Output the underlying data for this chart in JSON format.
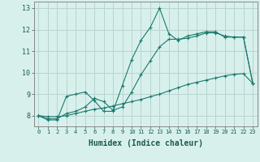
{
  "xlabel": "Humidex (Indice chaleur)",
  "ylabel": "",
  "background_color": "#d8f0ec",
  "grid_color": "#b8d4d0",
  "line_color": "#1a7a6e",
  "xlim": [
    -0.5,
    23.5
  ],
  "ylim": [
    7.5,
    13.3
  ],
  "xtick_labels": [
    "0",
    "1",
    "2",
    "3",
    "4",
    "5",
    "6",
    "7",
    "8",
    "9",
    "10",
    "11",
    "12",
    "13",
    "14",
    "15",
    "16",
    "17",
    "18",
    "19",
    "20",
    "21",
    "22",
    "23"
  ],
  "ytick_values": [
    8,
    9,
    10,
    11,
    12,
    13
  ],
  "series": [
    {
      "x": [
        0,
        1,
        2,
        3,
        4,
        5,
        6,
        7,
        8,
        9,
        10,
        11,
        12,
        13,
        14,
        15,
        16,
        17,
        18,
        19,
        20,
        21,
        22,
        23
      ],
      "y": [
        8.0,
        7.8,
        7.8,
        8.9,
        9.0,
        9.1,
        8.7,
        8.2,
        8.2,
        9.4,
        10.6,
        11.5,
        12.1,
        13.0,
        11.8,
        11.5,
        11.7,
        11.8,
        11.9,
        11.9,
        11.65,
        11.65,
        11.65,
        9.5
      ]
    },
    {
      "x": [
        0,
        1,
        2,
        3,
        4,
        5,
        6,
        7,
        8,
        9,
        10,
        11,
        12,
        13,
        14,
        15,
        16,
        17,
        18,
        19,
        20,
        21,
        22,
        23
      ],
      "y": [
        8.0,
        7.85,
        7.85,
        8.1,
        8.2,
        8.4,
        8.8,
        8.65,
        8.25,
        8.4,
        9.1,
        9.9,
        10.55,
        11.2,
        11.55,
        11.55,
        11.6,
        11.7,
        11.85,
        11.85,
        11.7,
        11.65,
        11.65,
        9.5
      ]
    },
    {
      "x": [
        0,
        1,
        2,
        3,
        4,
        5,
        6,
        7,
        8,
        9,
        10,
        11,
        12,
        13,
        14,
        15,
        16,
        17,
        18,
        19,
        20,
        21,
        22,
        23
      ],
      "y": [
        8.0,
        7.95,
        7.95,
        8.0,
        8.1,
        8.2,
        8.3,
        8.35,
        8.45,
        8.55,
        8.65,
        8.75,
        8.88,
        9.0,
        9.15,
        9.3,
        9.45,
        9.55,
        9.65,
        9.75,
        9.85,
        9.92,
        9.95,
        9.5
      ]
    }
  ]
}
